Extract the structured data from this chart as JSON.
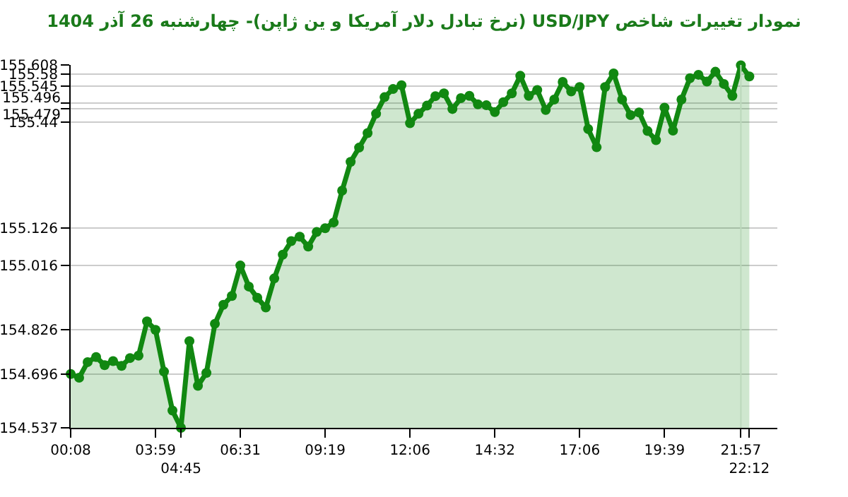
{
  "chart_data": {
    "type": "area",
    "title": "نمودار تغییرات شاخص USD/JPY (نرخ تبادل دلار آمریکا و ین ژاپن)- چهارشنبه  26 آذر 1404",
    "categories": [
      "00:08",
      null,
      null,
      null,
      null,
      null,
      null,
      null,
      null,
      null,
      "03:59",
      null,
      null,
      "04:45",
      null,
      null,
      null,
      null,
      null,
      null,
      "06:31",
      null,
      null,
      null,
      null,
      null,
      null,
      null,
      null,
      null,
      "09:19",
      null,
      null,
      null,
      null,
      null,
      null,
      null,
      null,
      null,
      "12:06",
      null,
      null,
      null,
      null,
      null,
      null,
      null,
      null,
      null,
      "14:32",
      null,
      null,
      null,
      null,
      null,
      null,
      null,
      null,
      null,
      "17:06",
      null,
      null,
      null,
      null,
      null,
      null,
      null,
      null,
      null,
      "19:39",
      null,
      null,
      null,
      null,
      null,
      null,
      null,
      null,
      "21:57",
      "22:12"
    ],
    "series": [
      {
        "color": "#118811",
        "values": [
          154.696,
          154.685,
          154.731,
          154.746,
          154.722,
          154.734,
          154.72,
          154.743,
          154.75,
          154.851,
          154.826,
          154.703,
          154.588,
          154.537,
          154.793,
          154.661,
          154.699,
          154.844,
          154.9,
          154.926,
          155.016,
          154.954,
          154.921,
          154.892,
          154.978,
          155.048,
          155.088,
          155.101,
          155.072,
          155.115,
          155.126,
          155.143,
          155.237,
          155.322,
          155.364,
          155.407,
          155.464,
          155.513,
          155.537,
          155.548,
          155.436,
          155.464,
          155.488,
          155.516,
          155.524,
          155.478,
          155.51,
          155.517,
          155.492,
          155.489,
          155.469,
          155.498,
          155.524,
          155.576,
          155.517,
          155.534,
          155.475,
          155.506,
          155.558,
          155.53,
          155.543,
          155.419,
          155.365,
          155.543,
          155.583,
          155.506,
          155.46,
          155.468,
          155.413,
          155.386,
          155.482,
          155.414,
          155.506,
          155.569,
          155.579,
          155.559,
          155.588,
          155.552,
          155.517,
          155.607,
          155.574
        ]
      }
    ],
    "ylim": [
      154.537,
      155.608
    ],
    "yticks": [
      154.537,
      154.696,
      154.826,
      155.016,
      155.126,
      155.44,
      155.479,
      155.496,
      155.545,
      155.58,
      155.608
    ],
    "ref_lines": [
      {
        "axis": "x",
        "value": "21:57",
        "color": "#bbd8bb"
      }
    ],
    "grid": "y",
    "marker": "circle"
  }
}
